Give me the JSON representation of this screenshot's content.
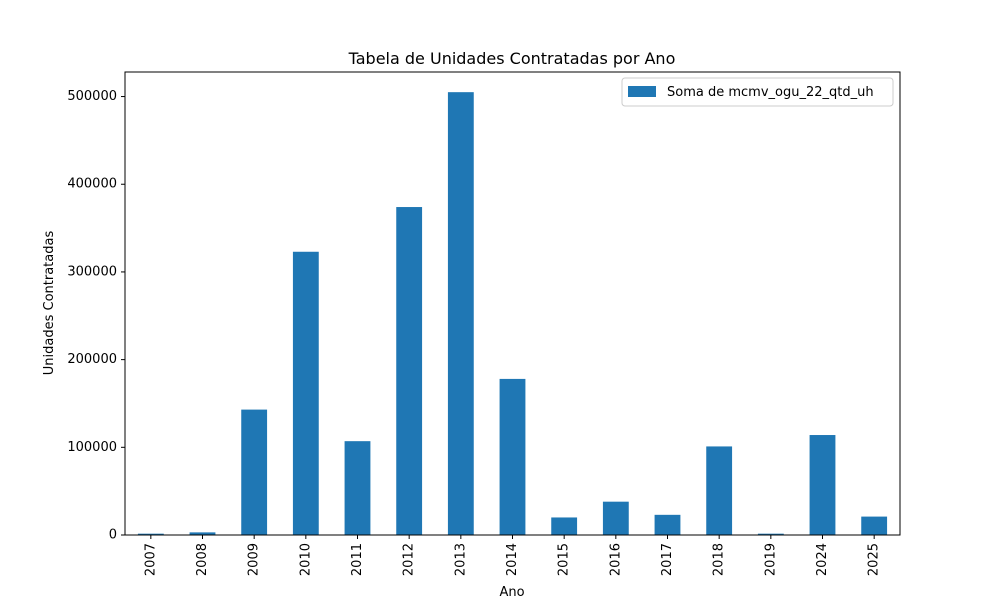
{
  "chart_data": {
    "type": "bar",
    "title": "Tabela de Unidades Contratadas por Ano",
    "xlabel": "Ano",
    "ylabel": "Unidades Contratadas",
    "categories": [
      "2007",
      "2008",
      "2009",
      "2010",
      "2011",
      "2012",
      "2013",
      "2014",
      "2015",
      "2016",
      "2017",
      "2018",
      "2019",
      "2024",
      "2025"
    ],
    "series": [
      {
        "name": "Soma de mcmv_ogu_22_qtd_uh",
        "color": "#1f77b4",
        "values": [
          1500,
          3000,
          143000,
          323000,
          107000,
          374000,
          505000,
          178000,
          20000,
          38000,
          23000,
          101000,
          1500,
          114000,
          21000
        ]
      }
    ],
    "ylim": [
      0,
      528000
    ],
    "yticks": [
      0,
      100000,
      200000,
      300000,
      400000,
      500000
    ],
    "ytick_labels": [
      "0",
      "100000",
      "200000",
      "300000",
      "400000",
      "500000"
    ],
    "grid": false,
    "legend_position": "top-right"
  }
}
